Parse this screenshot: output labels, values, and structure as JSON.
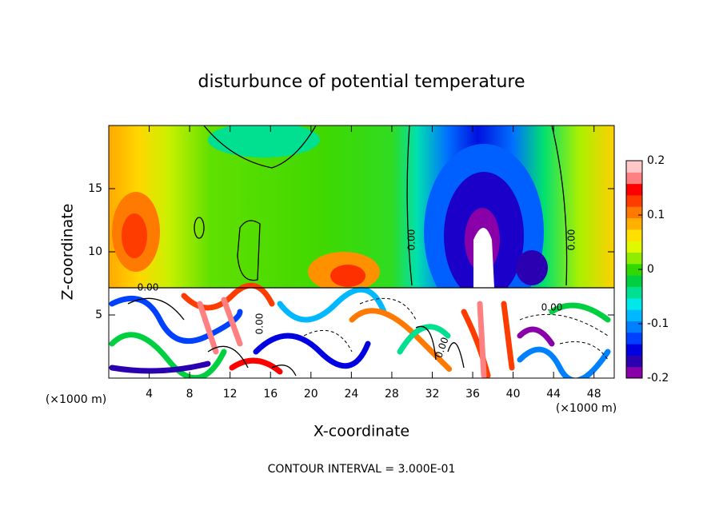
{
  "chart_data": {
    "type": "contour",
    "title": "disturbunce of potential temperature",
    "x_label": "X-coordinate",
    "y_label": "Z-coordinate",
    "x_unit_label": "(×1000 m)",
    "y_unit_label": "(×1000 m)",
    "footer": "CONTOUR INTERVAL = 3.000E-01",
    "contour_labels": [
      "0.00",
      "0.00",
      "0.00",
      "0.00",
      "0.00",
      "0.00"
    ],
    "xlim": [
      0,
      50
    ],
    "xticks": [
      4,
      8,
      12,
      16,
      20,
      24,
      28,
      32,
      36,
      40,
      44,
      48
    ],
    "ylim": [
      0,
      20
    ],
    "yticks": [
      5,
      10,
      15
    ],
    "colorbar_lim": [
      -0.2,
      0.2
    ],
    "colorbar_ticks": [
      -0.2,
      -0.1,
      0,
      0.1,
      0.2
    ],
    "colormap": [
      "#8a00a8",
      "#2a00b0",
      "#0000e0",
      "#0040ff",
      "#0080ff",
      "#00b8ff",
      "#00e8e8",
      "#00e090",
      "#00d040",
      "#30d800",
      "#90ec00",
      "#e0f800",
      "#ffe000",
      "#ffb000",
      "#ff7800",
      "#ff3c00",
      "#ff0000",
      "#ff8080",
      "#ffc8c8"
    ]
  }
}
